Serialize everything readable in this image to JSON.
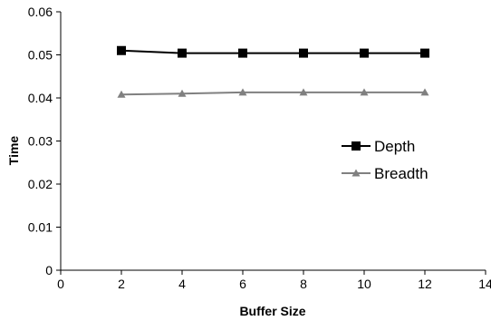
{
  "chart_data": {
    "type": "line",
    "title": "",
    "xlabel": "Buffer Size",
    "ylabel": "Time",
    "xlim": [
      0,
      14
    ],
    "ylim": [
      0,
      0.06
    ],
    "x_ticks": [
      0,
      2,
      4,
      6,
      8,
      10,
      12,
      14
    ],
    "y_ticks": [
      "0",
      "0.01",
      "0.02",
      "0.03",
      "0.04",
      "0.05",
      "0.06"
    ],
    "grid": false,
    "legend_position": "right",
    "x": [
      2,
      4,
      6,
      8,
      10,
      12
    ],
    "series": [
      {
        "name": "Depth",
        "values": [
          0.051,
          0.0504,
          0.0504,
          0.0504,
          0.0504,
          0.0504
        ],
        "color": "#000000",
        "marker": "square"
      },
      {
        "name": "Breadth",
        "values": [
          0.0408,
          0.041,
          0.0413,
          0.0413,
          0.0413,
          0.0413
        ],
        "color": "#808080",
        "marker": "triangle"
      }
    ]
  }
}
